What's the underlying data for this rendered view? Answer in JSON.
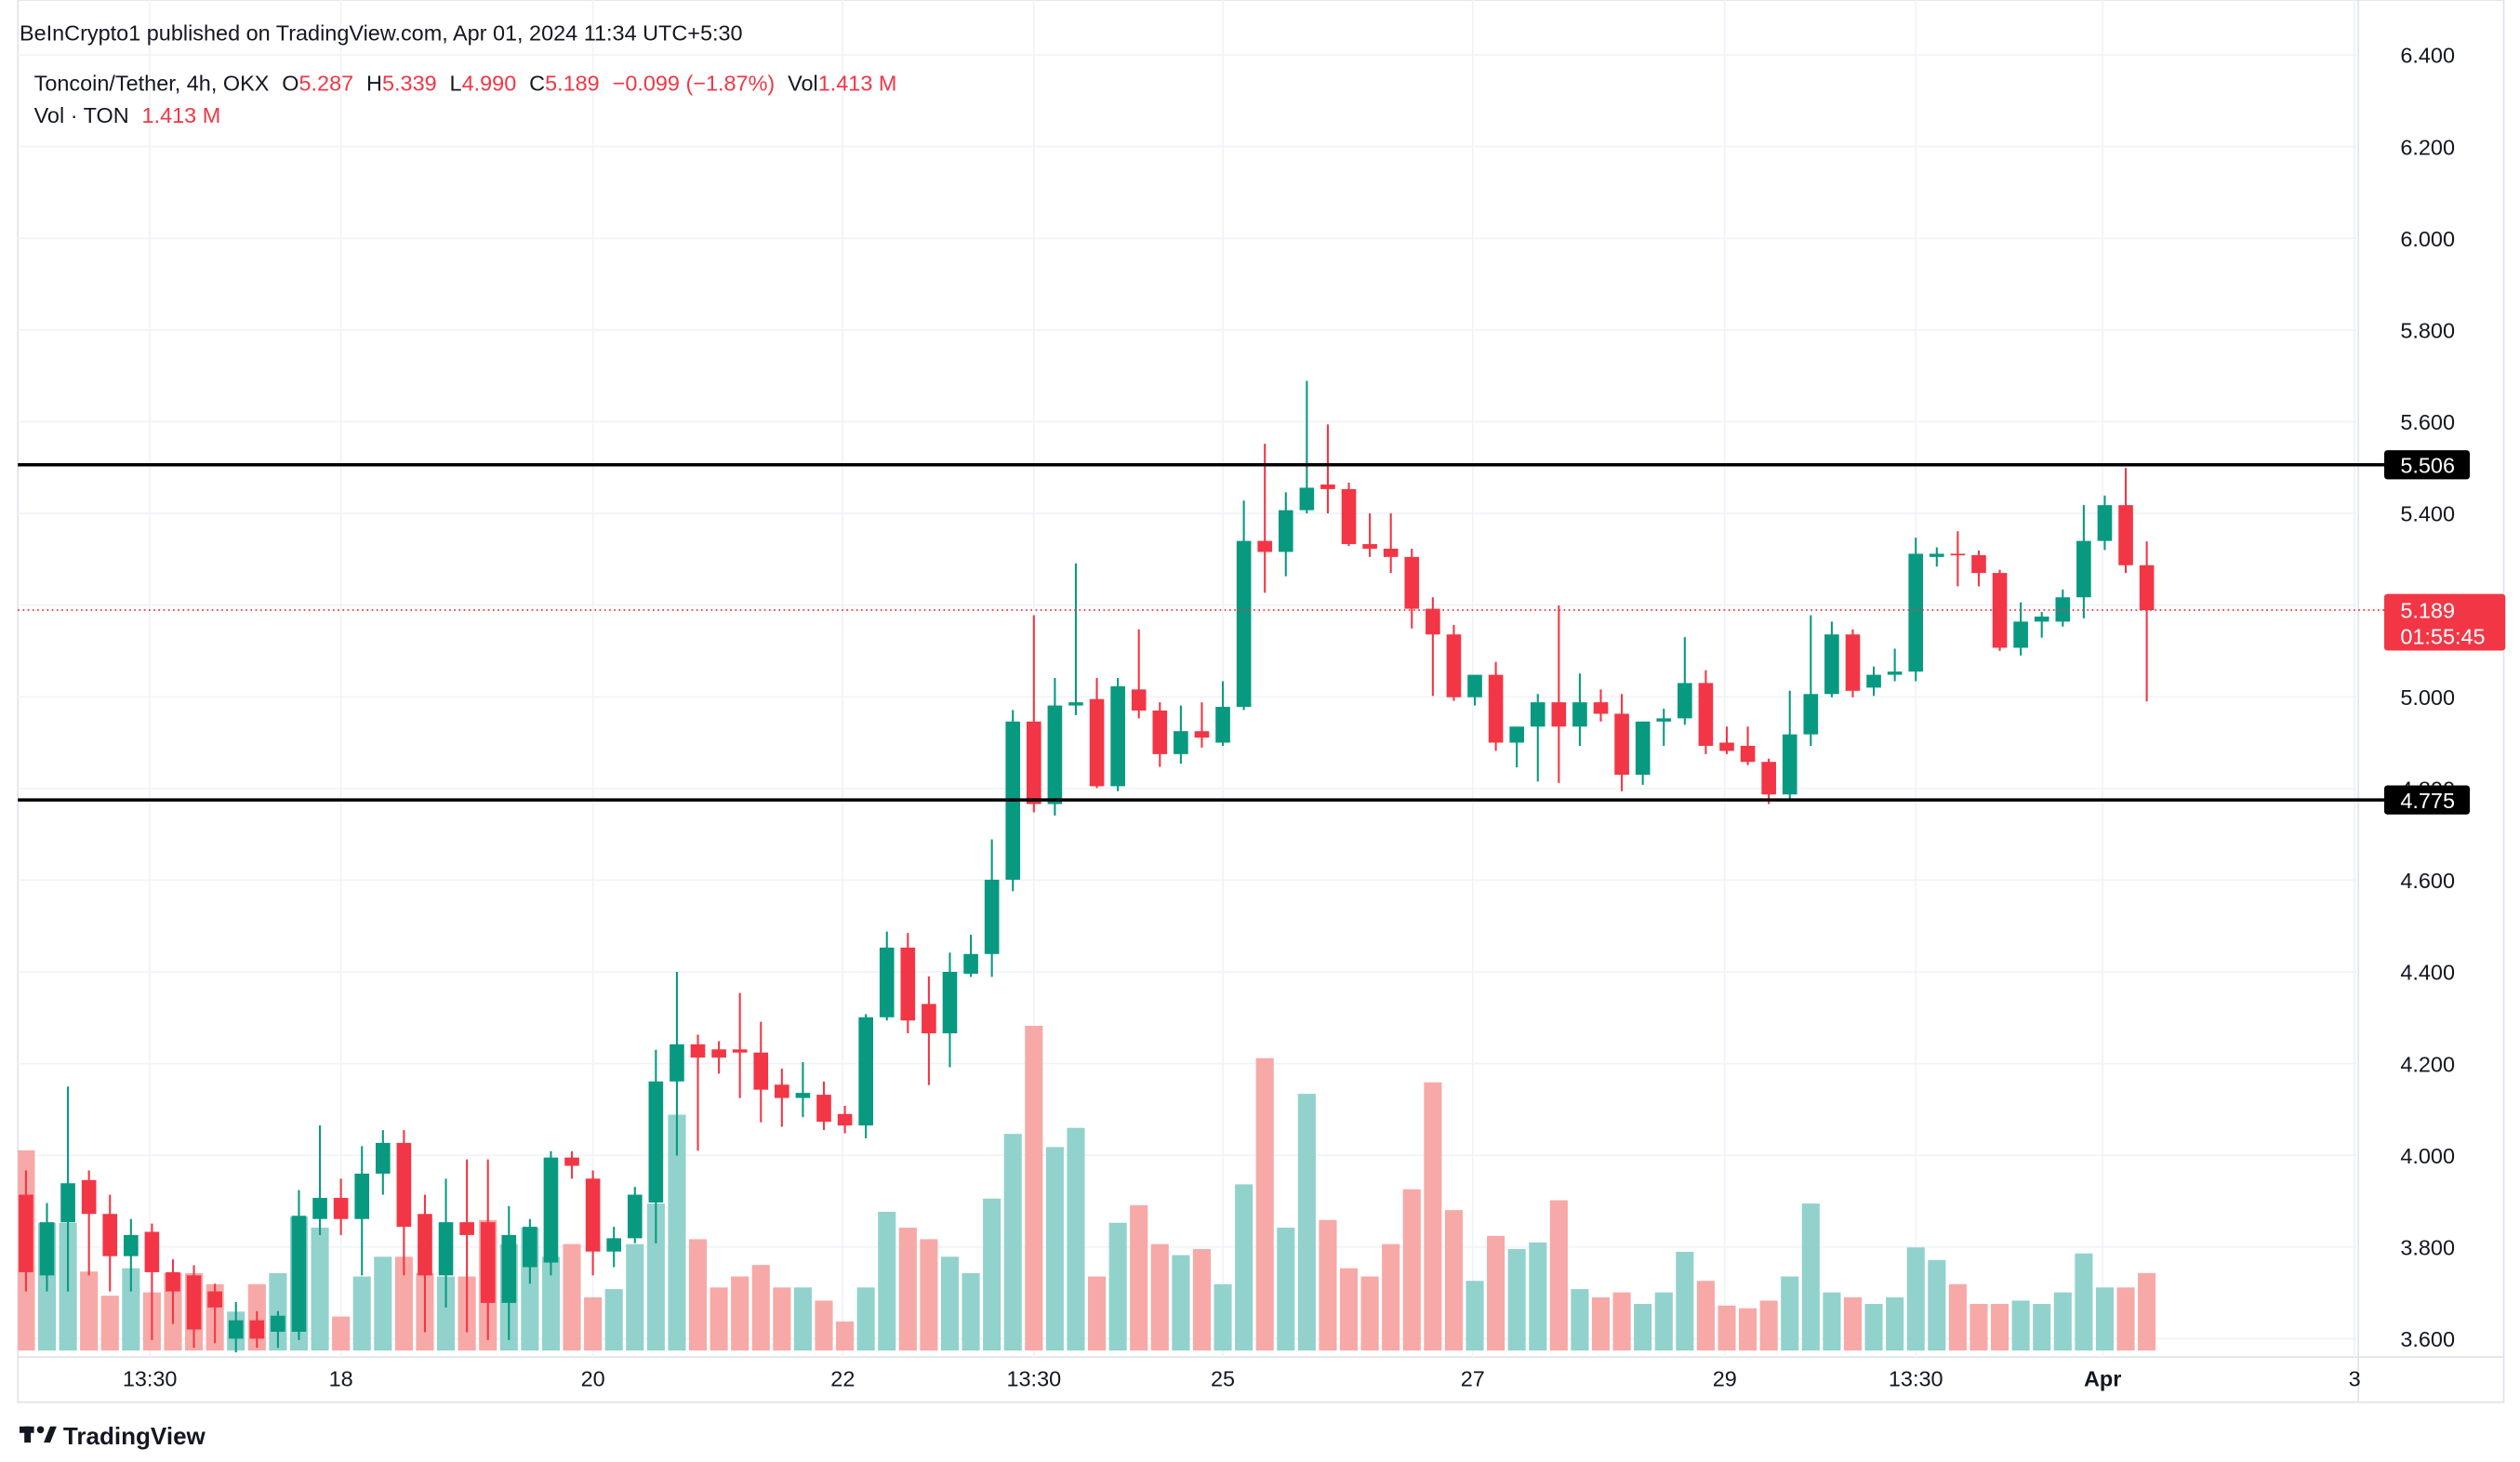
{
  "header": {
    "published": "BeInCrypto1 published on TradingView.com, Apr 01, 2024 11:34 UTC+5:30",
    "symbol": "Toncoin/Tether, 4h, OKX",
    "legend": [
      {
        "label": "O",
        "value": "5.287"
      },
      {
        "label": "H",
        "value": "5.339"
      },
      {
        "label": "L",
        "value": "4.990"
      },
      {
        "label": "C",
        "value": "5.189"
      }
    ],
    "change": "−0.099 (−1.87%)",
    "vol_label": "Vol",
    "vol_value": "1.413 M",
    "vol_pane_label": "Vol · TON",
    "vol_pane_value": "1.413 M"
  },
  "footer": {
    "brand": "TradingView"
  },
  "chart_data": {
    "type": "candlestick",
    "up_color": "#089981",
    "down_color": "#f23645",
    "volume_up_color": "#92d2cc",
    "volume_down_color": "#f7a9a7",
    "open": [
      3.914,
      3.738,
      3.854,
      3.946,
      3.872,
      3.78,
      3.833,
      3.745,
      3.738,
      3.703,
      3.6,
      3.64,
      3.615,
      3.615,
      3.861,
      3.907,
      3.861,
      3.96,
      4.027,
      3.872,
      3.738,
      3.854,
      3.854,
      3.678,
      3.756,
      3.766,
      3.995,
      3.949,
      3.79,
      3.819,
      3.897,
      4.161,
      4.242,
      4.231,
      4.231,
      4.224,
      4.154,
      4.125,
      4.132,
      4.09,
      4.065,
      4.301,
      4.453,
      4.33,
      4.266,
      4.396,
      4.439,
      4.601,
      4.946,
      4.766,
      4.981,
      4.995,
      4.805,
      5.016,
      4.97,
      4.875,
      4.925,
      4.9,
      4.978,
      5.34,
      5.316,
      5.407,
      5.463,
      5.453,
      5.333,
      5.323,
      5.305,
      5.192,
      5.136,
      4.999,
      5.048,
      4.9,
      4.935,
      4.988,
      4.935,
      4.988,
      4.963,
      4.83,
      4.946,
      4.953,
      5.03,
      4.9,
      4.893,
      4.858,
      4.787,
      4.918,
      5.006,
      5.136,
      5.02,
      5.048,
      5.055,
      5.305,
      5.312,
      5.309,
      5.27,
      5.107,
      5.164,
      5.164,
      5.217,
      5.34,
      5.418,
      5.287
    ],
    "high": [
      3.967,
      3.896,
      4.15,
      3.967,
      3.914,
      3.861,
      3.851,
      3.773,
      3.76,
      3.72,
      3.68,
      3.66,
      3.66,
      3.924,
      4.065,
      3.949,
      4.02,
      4.055,
      4.055,
      3.914,
      3.949,
      3.991,
      3.991,
      3.889,
      3.861,
      4.009,
      4.009,
      3.967,
      3.844,
      3.931,
      4.23,
      4.4,
      4.263,
      4.249,
      4.354,
      4.291,
      4.189,
      4.203,
      4.161,
      4.108,
      4.308,
      4.488,
      4.485,
      4.39,
      4.442,
      4.481,
      4.689,
      4.971,
      5.178,
      5.041,
      5.291,
      5.041,
      5.041,
      5.147,
      4.988,
      4.981,
      4.988,
      5.034,
      5.428,
      5.552,
      5.446,
      5.689,
      5.594,
      5.467,
      5.4,
      5.4,
      5.323,
      5.217,
      5.157,
      5.027,
      5.076,
      4.918,
      5.006,
      5.199,
      5.051,
      5.016,
      5.006,
      4.946,
      4.974,
      5.13,
      5.058,
      4.935,
      4.935,
      4.865,
      5.013,
      5.178,
      5.164,
      5.147,
      5.066,
      5.105,
      5.347,
      5.326,
      5.361,
      5.319,
      5.277,
      5.206,
      5.185,
      5.234,
      5.418,
      5.439,
      5.499,
      5.339
    ],
    "low": [
      3.703,
      3.703,
      3.703,
      3.738,
      3.703,
      3.703,
      3.597,
      3.632,
      3.58,
      3.59,
      3.57,
      3.58,
      3.58,
      3.597,
      3.826,
      3.826,
      3.738,
      3.914,
      3.738,
      3.614,
      3.668,
      3.614,
      3.597,
      3.597,
      3.72,
      3.738,
      3.949,
      3.738,
      3.756,
      3.808,
      3.808,
      3.999,
      4.01,
      4.178,
      4.125,
      4.072,
      4.062,
      4.083,
      4.055,
      4.048,
      4.037,
      4.294,
      4.266,
      4.153,
      4.192,
      4.389,
      4.389,
      4.576,
      4.748,
      4.741,
      4.96,
      4.801,
      4.794,
      4.953,
      4.847,
      4.854,
      4.889,
      4.893,
      4.971,
      5.227,
      5.263,
      5.4,
      5.4,
      5.329,
      5.305,
      5.27,
      5.149,
      5.002,
      4.991,
      4.981,
      4.882,
      4.846,
      4.815,
      4.812,
      4.893,
      4.946,
      4.794,
      4.808,
      4.893,
      4.939,
      4.875,
      4.875,
      4.851,
      4.766,
      4.776,
      4.893,
      4.999,
      4.999,
      5.002,
      5.034,
      5.034,
      5.284,
      5.241,
      5.241,
      5.1,
      5.09,
      5.129,
      5.153,
      5.171,
      5.32,
      5.27,
      4.99
    ],
    "close": [
      3.745,
      3.854,
      3.939,
      3.872,
      3.78,
      3.826,
      3.745,
      3.703,
      3.62,
      3.668,
      3.64,
      3.6,
      3.65,
      3.868,
      3.907,
      3.861,
      3.96,
      4.027,
      3.844,
      3.738,
      3.854,
      3.826,
      3.678,
      3.826,
      3.844,
      3.995,
      3.977,
      3.79,
      3.819,
      3.914,
      4.161,
      4.242,
      4.213,
      4.213,
      4.224,
      4.143,
      4.125,
      4.136,
      4.073,
      4.065,
      4.301,
      4.453,
      4.294,
      4.266,
      4.4,
      4.439,
      4.601,
      4.946,
      4.766,
      4.981,
      4.988,
      4.805,
      5.023,
      4.97,
      4.875,
      4.925,
      4.911,
      4.978,
      5.34,
      5.316,
      5.407,
      5.456,
      5.453,
      5.333,
      5.323,
      5.305,
      5.192,
      5.136,
      4.999,
      5.048,
      4.9,
      4.935,
      4.988,
      4.935,
      4.988,
      4.963,
      4.83,
      4.946,
      4.953,
      5.03,
      4.893,
      4.882,
      4.858,
      4.787,
      4.918,
      5.006,
      5.136,
      5.013,
      5.048,
      5.055,
      5.312,
      5.312,
      5.309,
      5.27,
      5.107,
      5.164,
      5.175,
      5.217,
      5.34,
      5.418,
      5.287,
      5.189
    ],
    "volume": [
      3.65,
      2.33,
      2.33,
      1.44,
      1.0,
      1.5,
      1.06,
      1.41,
      1.41,
      1.21,
      0.71,
      1.21,
      1.41,
      2.44,
      2.24,
      0.62,
      1.35,
      1.71,
      1.71,
      1.41,
      1.35,
      1.35,
      2.38,
      1.94,
      2.24,
      1.71,
      1.94,
      0.97,
      1.12,
      1.94,
      2.68,
      4.3,
      2.03,
      1.15,
      1.35,
      1.56,
      1.15,
      1.15,
      0.91,
      0.53,
      1.15,
      2.53,
      2.24,
      2.03,
      1.71,
      1.41,
      2.77,
      3.95,
      5.92,
      3.71,
      4.06,
      1.35,
      2.33,
      2.65,
      1.94,
      1.74,
      1.85,
      1.21,
      3.03,
      5.33,
      2.24,
      4.68,
      2.38,
      1.5,
      1.35,
      1.94,
      2.94,
      4.89,
      2.56,
      1.27,
      2.09,
      1.85,
      1.97,
      2.74,
      1.12,
      0.97,
      1.06,
      0.85,
      1.06,
      1.8,
      1.27,
      0.82,
      0.77,
      0.91,
      1.35,
      2.68,
      1.06,
      0.97,
      0.85,
      0.97,
      1.88,
      1.65,
      1.21,
      0.85,
      0.85,
      0.91,
      0.85,
      1.06,
      1.77,
      1.15,
      1.15,
      1.413
    ],
    "xticks": [
      {
        "value": 5.9,
        "label": "13:30"
      },
      {
        "value": 15,
        "label": "18"
      },
      {
        "value": 27,
        "label": "20"
      },
      {
        "value": 38.9,
        "label": "22"
      },
      {
        "value": 48,
        "label": "13:30"
      },
      {
        "value": 57,
        "label": "25"
      },
      {
        "value": 68.9,
        "label": "27"
      },
      {
        "value": 80.9,
        "label": "29"
      },
      {
        "value": 90,
        "label": "13:30"
      },
      {
        "value": 98.9,
        "label": "Apr"
      },
      {
        "value": 110.9,
        "label": "3"
      }
    ],
    "ylim": [
      3.56,
      6.4
    ],
    "yticks": [
      {
        "value": 3.6,
        "label": "3.600"
      },
      {
        "value": 3.8,
        "label": "3.800"
      },
      {
        "value": 4.0,
        "label": "4.000"
      },
      {
        "value": 4.2,
        "label": "4.200"
      },
      {
        "value": 4.4,
        "label": "4.400"
      },
      {
        "value": 4.6,
        "label": "4.600"
      },
      {
        "value": 4.8,
        "label": "4.800"
      },
      {
        "value": 5.0,
        "label": "5.000"
      },
      {
        "value": 5.2,
        "label": "5.200"
      },
      {
        "value": 5.4,
        "label": "5.400"
      },
      {
        "value": 5.6,
        "label": "5.600"
      },
      {
        "value": 5.8,
        "label": "5.800"
      },
      {
        "value": 6.0,
        "label": "6.000"
      },
      {
        "value": 6.2,
        "label": "6.200"
      },
      {
        "value": 6.4,
        "label": "6.400"
      }
    ],
    "grid": true,
    "hlines": [
      5.506,
      4.775
    ],
    "last_price": 5.189,
    "countdown": "01:55:45"
  }
}
